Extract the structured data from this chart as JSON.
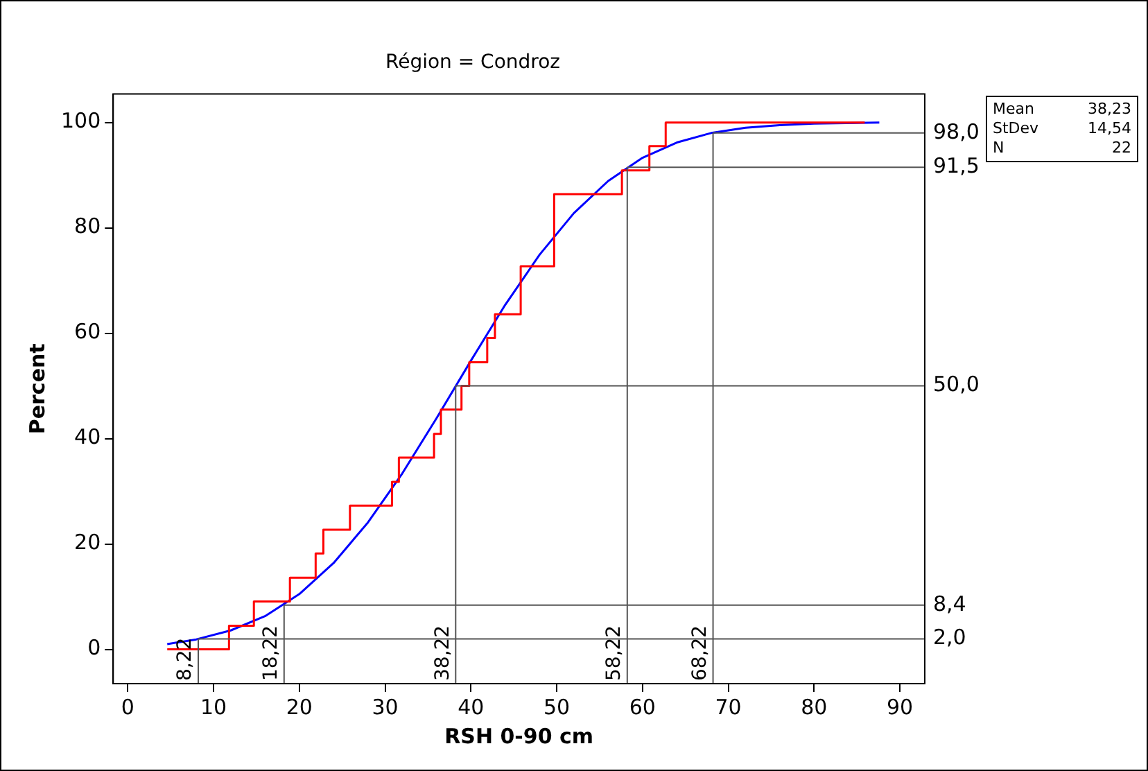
{
  "chart_data": {
    "type": "line",
    "title": "Région = Condroz",
    "xlabel": "RSH 0-90 cm",
    "ylabel": "Percent",
    "xlim": [
      -1.7,
      92.9
    ],
    "xticks": [
      0,
      10,
      20,
      30,
      40,
      50,
      60,
      70,
      80,
      90
    ],
    "ylim": [
      -6.5,
      105.4
    ],
    "yticks": [
      0,
      20,
      40,
      60,
      80,
      100
    ],
    "grid": false,
    "legend": false,
    "marker": "none",
    "line_style": "solid",
    "series": [
      {
        "type": "step",
        "color": "#ff0000",
        "x": [
          4.6,
          11.8,
          14.7,
          18.9,
          21.9,
          22.8,
          25.9,
          30.8,
          31.6,
          35.7,
          36.5,
          38.9,
          39.8,
          41.9,
          42.8,
          45.8,
          49.7,
          57.6,
          60.8,
          62.7,
          85.9
        ],
        "values": [
          0,
          4.5,
          9.1,
          13.6,
          18.2,
          22.7,
          27.3,
          31.8,
          36.4,
          40.9,
          45.5,
          50,
          54.5,
          59.1,
          63.6,
          72.7,
          86.4,
          90.9,
          95.5,
          100,
          100
        ]
      },
      {
        "type": "line",
        "color": "#0000ff",
        "x": [
          4.6,
          8,
          12,
          16,
          20,
          24,
          28,
          32,
          36,
          40,
          44,
          48,
          52,
          56,
          60,
          64,
          68,
          72,
          76,
          80,
          87.6
        ],
        "values": [
          1.0,
          1.9,
          3.6,
          6.3,
          10.5,
          16.4,
          24.1,
          33.4,
          43.9,
          54.8,
          65.4,
          74.9,
          82.8,
          88.9,
          93.3,
          96.2,
          98.0,
          99.0,
          99.5,
          99.8,
          100
        ]
      }
    ],
    "ref_lines": [
      {
        "axis": "x",
        "value": 8.22,
        "label": "8,22",
        "color": "#555555"
      },
      {
        "axis": "x",
        "value": 18.22,
        "label": "18,22",
        "color": "#555555"
      },
      {
        "axis": "x",
        "value": 38.22,
        "label": "38,22",
        "color": "#555555"
      },
      {
        "axis": "x",
        "value": 58.22,
        "label": "58,22",
        "color": "#555555"
      },
      {
        "axis": "x",
        "value": 68.22,
        "label": "68,22",
        "color": "#555555"
      },
      {
        "axis": "y",
        "value": 2.0,
        "label": "2,0",
        "color": "#555555"
      },
      {
        "axis": "y",
        "value": 8.4,
        "label": "8,4",
        "color": "#555555"
      },
      {
        "axis": "y",
        "value": 50.0,
        "label": "50,0",
        "color": "#555555"
      },
      {
        "axis": "y",
        "value": 91.5,
        "label": "91,5",
        "color": "#555555"
      },
      {
        "axis": "y",
        "value": 98.0,
        "label": "98,0",
        "color": "#555555"
      }
    ],
    "annotations": [
      "Mean 38,23",
      "StDev 14,54",
      "N 22"
    ]
  }
}
